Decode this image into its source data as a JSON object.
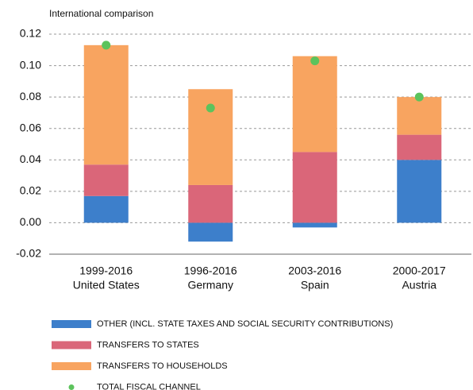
{
  "chart_data": {
    "type": "bar",
    "stacked": true,
    "title": "International comparison",
    "categories": [
      [
        "1999-2016",
        "United States"
      ],
      [
        "1996-2016",
        "Germany"
      ],
      [
        "2003-2016",
        "Spain"
      ],
      [
        "2000-2017",
        "Austria"
      ]
    ],
    "series": [
      {
        "name": "OTHER (INCL. STATE TAXES AND SOCIAL SECURITY CONTRIBUTIONS)",
        "color": "#3d7fcb",
        "values": [
          0.017,
          -0.012,
          -0.003,
          0.04
        ]
      },
      {
        "name": "TRANSFERS TO STATES",
        "color": "#da6679",
        "values": [
          0.02,
          0.024,
          0.045,
          0.016
        ]
      },
      {
        "name": "TRANSFERS TO HOUSEHOLDS",
        "color": "#f8a460",
        "values": [
          0.076,
          0.061,
          0.061,
          0.024
        ]
      },
      {
        "name": "TOTAL FISCAL CHANNEL",
        "color": "#5cc35c",
        "type": "scatter",
        "values": [
          0.113,
          0.073,
          0.103,
          0.08
        ]
      }
    ],
    "ylim": [
      -0.02,
      0.12
    ],
    "yticks": [
      -0.02,
      {
        "value": 0,
        "label": "0.00"
      },
      0.02,
      0.04,
      0.06,
      0.08,
      {
        "value": 0.1,
        "label": "0.10"
      },
      0.12
    ],
    "grid": true
  }
}
